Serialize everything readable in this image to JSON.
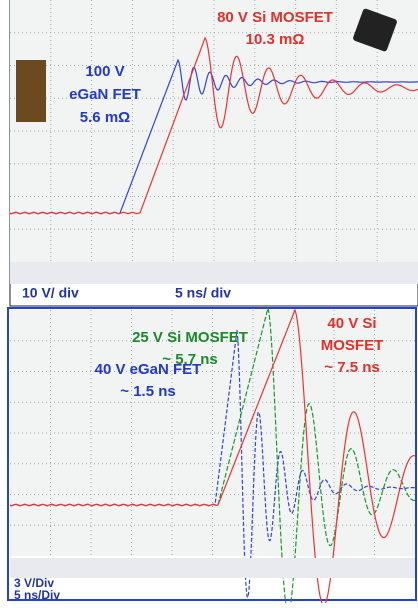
{
  "top_panel": {
    "labels": {
      "si_mosfet": "80 V Si MOSFET",
      "si_mosfet_rds": "10.3 mΩ",
      "egan_voltage": "100 V",
      "egan_name": "eGaN FET",
      "egan_rds": "5.6 mΩ"
    },
    "vertical_scale": "10 V/ div",
    "horizontal_scale": "5 ns/ div"
  },
  "bottom_panel": {
    "labels": {
      "si25_name": "25 V Si MOSFET",
      "si25_time": "~ 5.7 ns",
      "si40_line1": "40 V Si",
      "si40_line2": "MOSFET",
      "si40_time": "~ 7.5 ns",
      "egan_name": "40 V eGaN FET",
      "egan_time": "~ 1.5 ns"
    },
    "vertical_scale": "3 V/Div",
    "horizontal_scale": "5 ns/Div"
  }
}
